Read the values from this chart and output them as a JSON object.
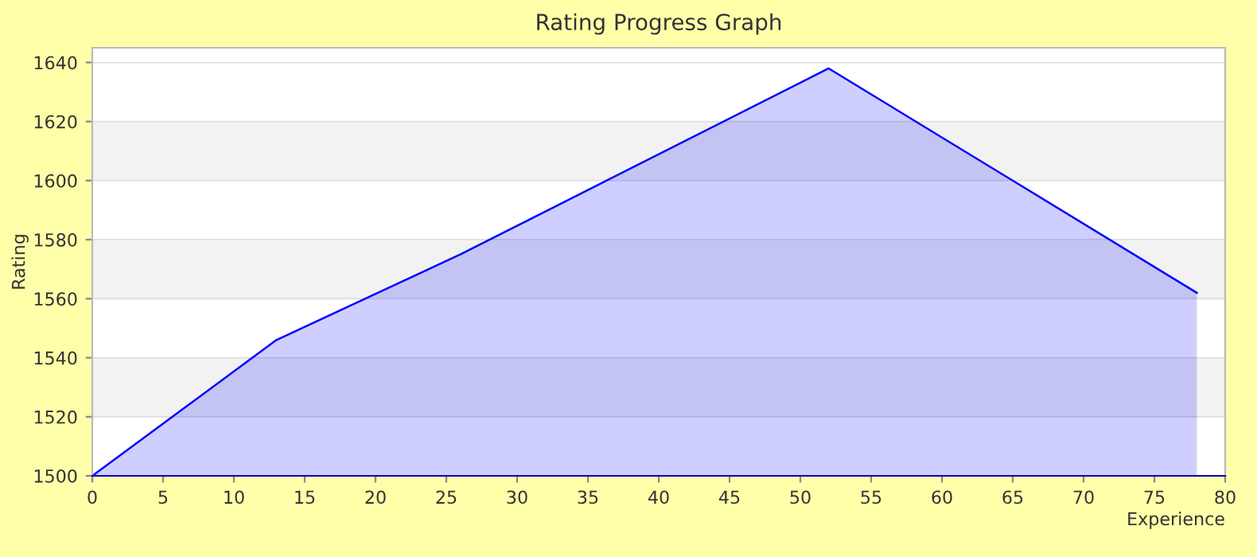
{
  "chart_data": {
    "type": "area",
    "title": "Rating Progress Graph",
    "xlabel": "Experience",
    "ylabel": "Rating",
    "x": [
      0,
      13,
      26,
      52,
      78
    ],
    "series": [
      {
        "color": "#0000ff",
        "values": [
          1500,
          1546,
          1575,
          1638,
          1562
        ]
      }
    ],
    "xlim": [
      0,
      80
    ],
    "xticks": [
      0,
      5,
      10,
      15,
      20,
      25,
      30,
      35,
      40,
      45,
      50,
      55,
      60,
      65,
      70,
      75,
      80
    ],
    "ylim": [
      1500,
      1645
    ],
    "yticks": [
      1500,
      1520,
      1540,
      1560,
      1580,
      1600,
      1620,
      1640
    ],
    "grid": "y",
    "legend": false,
    "marker": "none",
    "line_style": "solid"
  }
}
